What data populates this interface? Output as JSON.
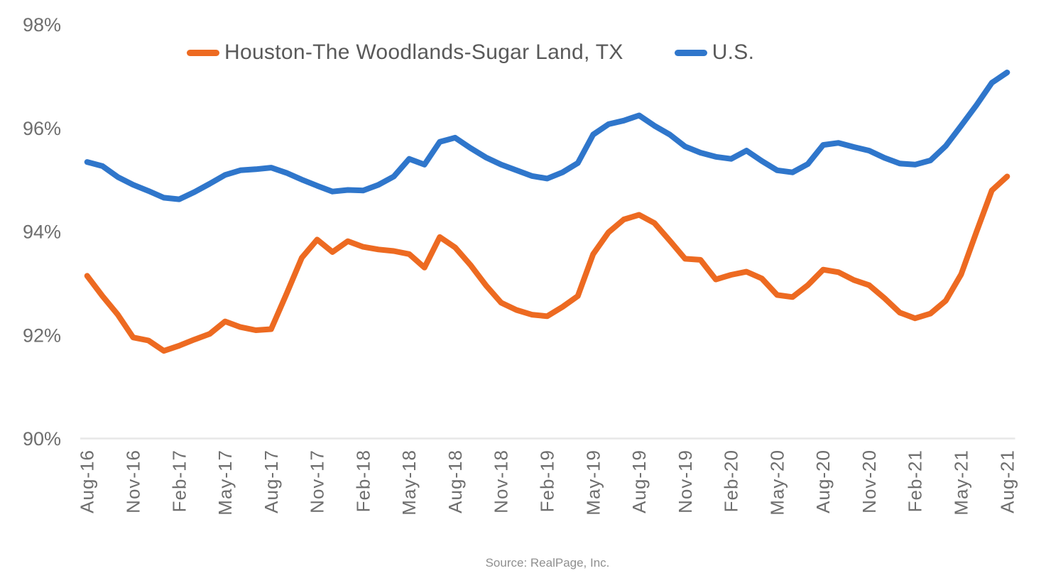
{
  "chart_data": {
    "type": "line",
    "title": "",
    "xlabel": "",
    "ylabel": "",
    "ylim": [
      90,
      98
    ],
    "grid": false,
    "legend_position": "top",
    "y_tick_values": [
      90,
      92,
      94,
      96,
      98
    ],
    "y_tick_labels": [
      "90%",
      "92%",
      "94%",
      "96%",
      "98%"
    ],
    "x_tick_every": 3,
    "categories": [
      "Aug-16",
      "Sep-16",
      "Oct-16",
      "Nov-16",
      "Dec-16",
      "Jan-17",
      "Feb-17",
      "Mar-17",
      "Apr-17",
      "May-17",
      "Jun-17",
      "Jul-17",
      "Aug-17",
      "Sep-17",
      "Oct-17",
      "Nov-17",
      "Dec-17",
      "Jan-18",
      "Feb-18",
      "Mar-18",
      "Apr-18",
      "May-18",
      "Jun-18",
      "Jul-18",
      "Aug-18",
      "Sep-18",
      "Oct-18",
      "Nov-18",
      "Dec-18",
      "Jan-19",
      "Feb-19",
      "Mar-19",
      "Apr-19",
      "May-19",
      "Jun-19",
      "Jul-19",
      "Aug-19",
      "Sep-19",
      "Oct-19",
      "Nov-19",
      "Dec-19",
      "Jan-20",
      "Feb-20",
      "Mar-20",
      "Apr-20",
      "May-20",
      "Jun-20",
      "Jul-20",
      "Aug-20",
      "Sep-20",
      "Oct-20",
      "Nov-20",
      "Dec-20",
      "Jan-21",
      "Feb-21",
      "Mar-21",
      "Apr-21",
      "May-21",
      "Jun-21",
      "Jul-21",
      "Aug-21"
    ],
    "series": [
      {
        "name": "Houston-The Woodlands-Sugar Land, TX",
        "color": "#ED6A21",
        "values": [
          93.15,
          92.76,
          92.4,
          91.96,
          91.9,
          91.7,
          91.8,
          91.92,
          92.03,
          92.27,
          92.16,
          92.1,
          92.12,
          92.8,
          93.5,
          93.85,
          93.61,
          93.82,
          93.71,
          93.66,
          93.63,
          93.57,
          93.31,
          93.9,
          93.7,
          93.36,
          92.97,
          92.63,
          92.49,
          92.4,
          92.37,
          92.55,
          92.76,
          93.57,
          93.99,
          94.24,
          94.33,
          94.17,
          93.83,
          93.48,
          93.46,
          93.08,
          93.17,
          93.23,
          93.1,
          92.78,
          92.74,
          92.97,
          93.27,
          93.22,
          93.07,
          92.97,
          92.72,
          92.44,
          92.33,
          92.42,
          92.67,
          93.18,
          94.0,
          94.8,
          95.07
        ]
      },
      {
        "name": "U.S.",
        "color": "#2F76CB",
        "values": [
          95.35,
          95.27,
          95.06,
          94.91,
          94.79,
          94.66,
          94.63,
          94.77,
          94.93,
          95.1,
          95.19,
          95.21,
          95.24,
          95.14,
          95.01,
          94.89,
          94.78,
          94.81,
          94.8,
          94.91,
          95.07,
          95.41,
          95.3,
          95.74,
          95.82,
          95.62,
          95.44,
          95.3,
          95.19,
          95.08,
          95.03,
          95.15,
          95.33,
          95.88,
          96.08,
          96.15,
          96.25,
          96.05,
          95.88,
          95.65,
          95.53,
          95.45,
          95.41,
          95.57,
          95.37,
          95.19,
          95.15,
          95.31,
          95.68,
          95.72,
          95.64,
          95.57,
          95.43,
          95.32,
          95.3,
          95.38,
          95.66,
          96.05,
          96.45,
          96.88,
          97.08
        ]
      }
    ]
  },
  "legend": {
    "houston_label": "Houston-The Woodlands-Sugar Land, TX",
    "us_label": "U.S."
  },
  "source": {
    "text": "Source: RealPage, Inc."
  },
  "axis_colors": {
    "tick_label": "#6E6E6E",
    "axis_line": "#E7E7E7"
  }
}
